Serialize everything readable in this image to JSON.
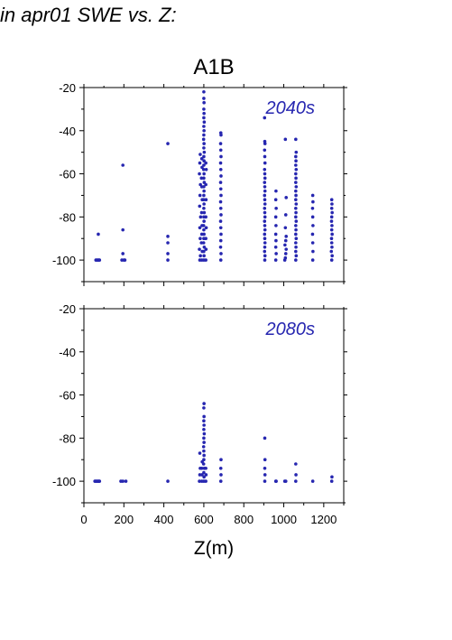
{
  "header": {
    "text": "in apr01 SWE vs. Z:"
  },
  "colors": {
    "points": "#2626b0",
    "axis": "#000000",
    "tag": "#2626b0"
  },
  "chart_data": [
    {
      "type": "scatter",
      "title": "A1B",
      "label": "2040s",
      "xlabel": "",
      "ylabel": "",
      "xlim": [
        0,
        1300
      ],
      "ylim": [
        -110,
        -20
      ],
      "xticks": [],
      "yticks": [
        -100,
        -80,
        -60,
        -40,
        -20
      ],
      "grid": false,
      "points": [
        [
          60,
          -100
        ],
        [
          65,
          -100
        ],
        [
          70,
          -100
        ],
        [
          75,
          -100
        ],
        [
          78,
          -100
        ],
        [
          72,
          -88
        ],
        [
          190,
          -100
        ],
        [
          195,
          -56
        ],
        [
          195,
          -86
        ],
        [
          195,
          -97
        ],
        [
          205,
          -100
        ],
        [
          200,
          -100
        ],
        [
          420,
          -100
        ],
        [
          420,
          -97
        ],
        [
          420,
          -92
        ],
        [
          420,
          -89
        ],
        [
          420,
          -46
        ],
        [
          580,
          -100
        ],
        [
          583,
          -98
        ],
        [
          578,
          -95
        ],
        [
          582,
          -90
        ],
        [
          580,
          -85
        ],
        [
          584,
          -80
        ],
        [
          579,
          -75
        ],
        [
          581,
          -70
        ],
        [
          583,
          -65
        ],
        [
          578,
          -60
        ],
        [
          580,
          -55
        ],
        [
          582,
          -51
        ],
        [
          590,
          -100
        ],
        [
          592,
          -96
        ],
        [
          588,
          -92
        ],
        [
          590,
          -88
        ],
        [
          591,
          -84
        ],
        [
          589,
          -78
        ],
        [
          592,
          -72
        ],
        [
          590,
          -66
        ],
        [
          588,
          -62
        ],
        [
          591,
          -57
        ],
        [
          590,
          -53
        ],
        [
          600,
          -100
        ],
        [
          601,
          -98
        ],
        [
          600,
          -96
        ],
        [
          602,
          -94
        ],
        [
          599,
          -92
        ],
        [
          600,
          -90
        ],
        [
          601,
          -88
        ],
        [
          600,
          -86
        ],
        [
          599,
          -84
        ],
        [
          601,
          -82
        ],
        [
          600,
          -80
        ],
        [
          602,
          -78
        ],
        [
          600,
          -76
        ],
        [
          601,
          -74
        ],
        [
          599,
          -72
        ],
        [
          600,
          -70
        ],
        [
          601,
          -68
        ],
        [
          600,
          -66
        ],
        [
          602,
          -64
        ],
        [
          600,
          -62
        ],
        [
          601,
          -60
        ],
        [
          599,
          -58
        ],
        [
          600,
          -56
        ],
        [
          601,
          -54
        ],
        [
          600,
          -52
        ],
        [
          602,
          -50
        ],
        [
          600,
          -48
        ],
        [
          601,
          -46
        ],
        [
          599,
          -44
        ],
        [
          600,
          -42
        ],
        [
          601,
          -40
        ],
        [
          600,
          -38
        ],
        [
          602,
          -36
        ],
        [
          600,
          -34
        ],
        [
          601,
          -32
        ],
        [
          600,
          -30
        ],
        [
          601,
          -27
        ],
        [
          600,
          -25
        ],
        [
          600,
          -22
        ],
        [
          610,
          -100
        ],
        [
          611,
          -95
        ],
        [
          610,
          -90
        ],
        [
          612,
          -85
        ],
        [
          610,
          -80
        ],
        [
          611,
          -72
        ],
        [
          610,
          -65
        ],
        [
          612,
          -58
        ],
        [
          610,
          -55
        ],
        [
          685,
          -100
        ],
        [
          686,
          -97
        ],
        [
          684,
          -94
        ],
        [
          685,
          -91
        ],
        [
          686,
          -88
        ],
        [
          685,
          -85
        ],
        [
          684,
          -82
        ],
        [
          686,
          -79
        ],
        [
          685,
          -76
        ],
        [
          684,
          -73
        ],
        [
          686,
          -70
        ],
        [
          685,
          -67
        ],
        [
          684,
          -64
        ],
        [
          686,
          -61
        ],
        [
          685,
          -58
        ],
        [
          684,
          -55
        ],
        [
          686,
          -52
        ],
        [
          685,
          -49
        ],
        [
          684,
          -46
        ],
        [
          686,
          -42
        ],
        [
          685,
          -41
        ],
        [
          905,
          -100
        ],
        [
          906,
          -98
        ],
        [
          904,
          -96
        ],
        [
          905,
          -94
        ],
        [
          906,
          -92
        ],
        [
          905,
          -90
        ],
        [
          904,
          -88
        ],
        [
          906,
          -86
        ],
        [
          905,
          -84
        ],
        [
          904,
          -82
        ],
        [
          906,
          -80
        ],
        [
          905,
          -78
        ],
        [
          904,
          -76
        ],
        [
          906,
          -74
        ],
        [
          905,
          -72
        ],
        [
          904,
          -70
        ],
        [
          906,
          -68
        ],
        [
          905,
          -66
        ],
        [
          904,
          -64
        ],
        [
          906,
          -62
        ],
        [
          905,
          -60
        ],
        [
          904,
          -58
        ],
        [
          906,
          -55
        ],
        [
          905,
          -52
        ],
        [
          904,
          -49
        ],
        [
          906,
          -46
        ],
        [
          905,
          -45
        ],
        [
          904,
          -34
        ],
        [
          960,
          -100
        ],
        [
          962,
          -97
        ],
        [
          960,
          -94
        ],
        [
          961,
          -91
        ],
        [
          960,
          -88
        ],
        [
          961,
          -84
        ],
        [
          960,
          -80
        ],
        [
          962,
          -76
        ],
        [
          960,
          -72
        ],
        [
          961,
          -68
        ],
        [
          1005,
          -100
        ],
        [
          1008,
          -99
        ],
        [
          1010,
          -97
        ],
        [
          1012,
          -95
        ],
        [
          1006,
          -93
        ],
        [
          1010,
          -91
        ],
        [
          1012,
          -89
        ],
        [
          1008,
          -85
        ],
        [
          1010,
          -79
        ],
        [
          1012,
          -71
        ],
        [
          1008,
          -44
        ],
        [
          1060,
          -100
        ],
        [
          1062,
          -98
        ],
        [
          1060,
          -96
        ],
        [
          1061,
          -94
        ],
        [
          1060,
          -92
        ],
        [
          1062,
          -90
        ],
        [
          1060,
          -88
        ],
        [
          1061,
          -86
        ],
        [
          1060,
          -84
        ],
        [
          1062,
          -82
        ],
        [
          1060,
          -80
        ],
        [
          1061,
          -78
        ],
        [
          1060,
          -76
        ],
        [
          1062,
          -74
        ],
        [
          1060,
          -72
        ],
        [
          1061,
          -70
        ],
        [
          1060,
          -68
        ],
        [
          1062,
          -66
        ],
        [
          1060,
          -64
        ],
        [
          1061,
          -62
        ],
        [
          1060,
          -60
        ],
        [
          1062,
          -58
        ],
        [
          1060,
          -56
        ],
        [
          1061,
          -54
        ],
        [
          1060,
          -52
        ],
        [
          1062,
          -50
        ],
        [
          1060,
          -44
        ],
        [
          1145,
          -100
        ],
        [
          1146,
          -96
        ],
        [
          1145,
          -92
        ],
        [
          1144,
          -88
        ],
        [
          1146,
          -84
        ],
        [
          1145,
          -80
        ],
        [
          1144,
          -76
        ],
        [
          1146,
          -73
        ],
        [
          1145,
          -70
        ],
        [
          1240,
          -100
        ],
        [
          1242,
          -98
        ],
        [
          1238,
          -96
        ],
        [
          1241,
          -94
        ],
        [
          1240,
          -92
        ],
        [
          1239,
          -90
        ],
        [
          1242,
          -88
        ],
        [
          1240,
          -86
        ],
        [
          1241,
          -84
        ],
        [
          1239,
          -82
        ],
        [
          1240,
          -80
        ],
        [
          1242,
          -78
        ],
        [
          1240,
          -76
        ],
        [
          1241,
          -74
        ],
        [
          1240,
          -72
        ]
      ]
    },
    {
      "type": "scatter",
      "title": "",
      "label": "2080s",
      "xlabel": "Z(m)",
      "ylabel": "",
      "xlim": [
        0,
        1300
      ],
      "ylim": [
        -110,
        -20
      ],
      "xticks": [
        0,
        200,
        400,
        600,
        800,
        1000,
        1200
      ],
      "yticks": [
        -100,
        -80,
        -60,
        -40,
        -20
      ],
      "grid": false,
      "points": [
        [
          55,
          -100
        ],
        [
          60,
          -100
        ],
        [
          65,
          -100
        ],
        [
          70,
          -100
        ],
        [
          75,
          -100
        ],
        [
          78,
          -100
        ],
        [
          185,
          -100
        ],
        [
          195,
          -100
        ],
        [
          210,
          -100
        ],
        [
          420,
          -100
        ],
        [
          578,
          -100
        ],
        [
          580,
          -97
        ],
        [
          582,
          -94
        ],
        [
          580,
          -87
        ],
        [
          590,
          -100
        ],
        [
          591,
          -97
        ],
        [
          590,
          -94
        ],
        [
          592,
          -91
        ],
        [
          600,
          -100
        ],
        [
          601,
          -98
        ],
        [
          600,
          -96
        ],
        [
          602,
          -94
        ],
        [
          599,
          -92
        ],
        [
          600,
          -90
        ],
        [
          601,
          -88
        ],
        [
          600,
          -86
        ],
        [
          599,
          -84
        ],
        [
          601,
          -82
        ],
        [
          600,
          -80
        ],
        [
          602,
          -78
        ],
        [
          600,
          -76
        ],
        [
          601,
          -74
        ],
        [
          600,
          -72
        ],
        [
          601,
          -70
        ],
        [
          600,
          -66
        ],
        [
          601,
          -64
        ],
        [
          610,
          -100
        ],
        [
          611,
          -97
        ],
        [
          610,
          -94
        ],
        [
          685,
          -100
        ],
        [
          686,
          -97
        ],
        [
          685,
          -94
        ],
        [
          686,
          -90
        ],
        [
          905,
          -100
        ],
        [
          906,
          -97
        ],
        [
          905,
          -94
        ],
        [
          906,
          -90
        ],
        [
          905,
          -80
        ],
        [
          960,
          -100
        ],
        [
          962,
          -100
        ],
        [
          1005,
          -100
        ],
        [
          1010,
          -100
        ],
        [
          1060,
          -100
        ],
        [
          1061,
          -97
        ],
        [
          1060,
          -92
        ],
        [
          1145,
          -100
        ],
        [
          1240,
          -100
        ],
        [
          1241,
          -98
        ]
      ]
    }
  ]
}
